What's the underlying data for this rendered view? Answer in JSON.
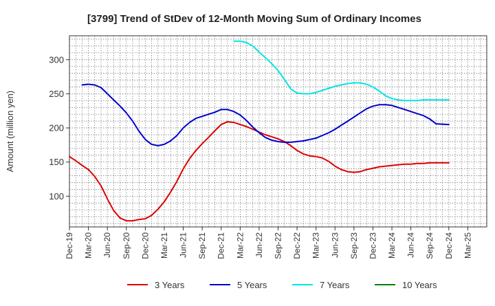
{
  "chart_data": {
    "type": "line",
    "title": "[3799]  Trend of StDev of 12-Month Moving Sum of Ordinary Incomes",
    "xlabel": "",
    "ylabel": "Amount (million yen)",
    "ylim": [
      55,
      335
    ],
    "yticks": [
      100,
      150,
      200,
      250,
      300
    ],
    "x_index_range": [
      0,
      22
    ],
    "xtick_labels": [
      "Dec-19",
      "Mar-20",
      "Jun-20",
      "Sep-20",
      "Dec-20",
      "Mar-21",
      "Jun-21",
      "Sep-21",
      "Dec-21",
      "Mar-22",
      "Jun-22",
      "Sep-22",
      "Dec-22",
      "Mar-23",
      "Jun-23",
      "Sep-23",
      "Dec-23",
      "Mar-24",
      "Jun-24",
      "Sep-24",
      "Dec-24",
      "Mar-25"
    ],
    "grid": true,
    "legend_position": "bottom",
    "series": [
      {
        "name": "3 Years",
        "color": "#dd0000",
        "points": [
          [
            0,
            158
          ],
          [
            0.33,
            152
          ],
          [
            0.67,
            145
          ],
          [
            1,
            139
          ],
          [
            1.33,
            129
          ],
          [
            1.67,
            115
          ],
          [
            2,
            96
          ],
          [
            2.33,
            79
          ],
          [
            2.67,
            68
          ],
          [
            3,
            64
          ],
          [
            3.33,
            64
          ],
          [
            3.67,
            66
          ],
          [
            4,
            67
          ],
          [
            4.33,
            72
          ],
          [
            4.67,
            81
          ],
          [
            5,
            92
          ],
          [
            5.33,
            106
          ],
          [
            5.67,
            122
          ],
          [
            6,
            140
          ],
          [
            6.33,
            155
          ],
          [
            6.67,
            167
          ],
          [
            7,
            177
          ],
          [
            7.33,
            186
          ],
          [
            7.67,
            196
          ],
          [
            8,
            205
          ],
          [
            8.33,
            209
          ],
          [
            8.67,
            208
          ],
          [
            9,
            205
          ],
          [
            9.33,
            202
          ],
          [
            9.67,
            198
          ],
          [
            10,
            194
          ],
          [
            10.33,
            190
          ],
          [
            10.67,
            187
          ],
          [
            11,
            184
          ],
          [
            11.33,
            180
          ],
          [
            11.67,
            174
          ],
          [
            12,
            167
          ],
          [
            12.33,
            162
          ],
          [
            12.67,
            159
          ],
          [
            13,
            158
          ],
          [
            13.33,
            156
          ],
          [
            13.67,
            151
          ],
          [
            14,
            144
          ],
          [
            14.33,
            139
          ],
          [
            14.67,
            136
          ],
          [
            15,
            135
          ],
          [
            15.33,
            136
          ],
          [
            15.67,
            139
          ],
          [
            16,
            141
          ],
          [
            16.33,
            143
          ],
          [
            16.67,
            144
          ],
          [
            17,
            145
          ],
          [
            17.33,
            146
          ],
          [
            17.67,
            147
          ],
          [
            18,
            147
          ],
          [
            18.33,
            148
          ],
          [
            18.67,
            148
          ],
          [
            19,
            149
          ],
          [
            19.33,
            149
          ],
          [
            19.67,
            149
          ],
          [
            20,
            149
          ]
        ]
      },
      {
        "name": "5 Years",
        "color": "#0000cc",
        "points": [
          [
            0.67,
            263
          ],
          [
            1,
            264
          ],
          [
            1.33,
            263
          ],
          [
            1.67,
            259
          ],
          [
            2,
            250
          ],
          [
            2.33,
            241
          ],
          [
            2.67,
            232
          ],
          [
            3,
            222
          ],
          [
            3.33,
            210
          ],
          [
            3.67,
            195
          ],
          [
            4,
            183
          ],
          [
            4.33,
            176
          ],
          [
            4.67,
            174
          ],
          [
            5,
            176
          ],
          [
            5.33,
            181
          ],
          [
            5.67,
            189
          ],
          [
            6,
            200
          ],
          [
            6.33,
            208
          ],
          [
            6.67,
            214
          ],
          [
            7,
            217
          ],
          [
            7.33,
            220
          ],
          [
            7.67,
            223
          ],
          [
            8,
            227
          ],
          [
            8.33,
            227
          ],
          [
            8.67,
            224
          ],
          [
            9,
            219
          ],
          [
            9.33,
            211
          ],
          [
            9.67,
            201
          ],
          [
            10,
            193
          ],
          [
            10.33,
            186
          ],
          [
            10.67,
            182
          ],
          [
            11,
            180
          ],
          [
            11.33,
            179
          ],
          [
            11.67,
            179
          ],
          [
            12,
            180
          ],
          [
            12.33,
            181
          ],
          [
            12.67,
            183
          ],
          [
            13,
            185
          ],
          [
            13.33,
            189
          ],
          [
            13.67,
            193
          ],
          [
            14,
            198
          ],
          [
            14.33,
            204
          ],
          [
            14.67,
            210
          ],
          [
            15,
            216
          ],
          [
            15.33,
            222
          ],
          [
            15.67,
            228
          ],
          [
            16,
            232
          ],
          [
            16.33,
            234
          ],
          [
            16.67,
            234
          ],
          [
            17,
            233
          ],
          [
            17.33,
            230
          ],
          [
            17.67,
            227
          ],
          [
            18,
            224
          ],
          [
            18.33,
            221
          ],
          [
            18.67,
            218
          ],
          [
            19,
            213
          ],
          [
            19.33,
            206
          ],
          [
            20,
            205
          ]
        ]
      },
      {
        "name": "7 Years",
        "color": "#00e5e5",
        "points": [
          [
            8.67,
            327
          ],
          [
            9,
            327
          ],
          [
            9.33,
            325
          ],
          [
            9.67,
            320
          ],
          [
            10,
            311
          ],
          [
            10.33,
            303
          ],
          [
            10.67,
            294
          ],
          [
            11,
            284
          ],
          [
            11.33,
            271
          ],
          [
            11.67,
            257
          ],
          [
            12,
            251
          ],
          [
            12.33,
            250
          ],
          [
            12.67,
            250
          ],
          [
            13,
            252
          ],
          [
            13.33,
            255
          ],
          [
            13.67,
            258
          ],
          [
            14,
            261
          ],
          [
            14.33,
            263
          ],
          [
            14.67,
            265
          ],
          [
            15,
            266
          ],
          [
            15.33,
            266
          ],
          [
            15.67,
            264
          ],
          [
            16,
            260
          ],
          [
            16.33,
            254
          ],
          [
            16.67,
            247
          ],
          [
            17,
            243
          ],
          [
            17.33,
            241
          ],
          [
            17.67,
            240
          ],
          [
            18,
            240
          ],
          [
            18.33,
            240
          ],
          [
            18.67,
            241
          ],
          [
            20,
            241
          ]
        ]
      },
      {
        "name": "10 Years",
        "color": "#008000",
        "points": []
      }
    ]
  }
}
